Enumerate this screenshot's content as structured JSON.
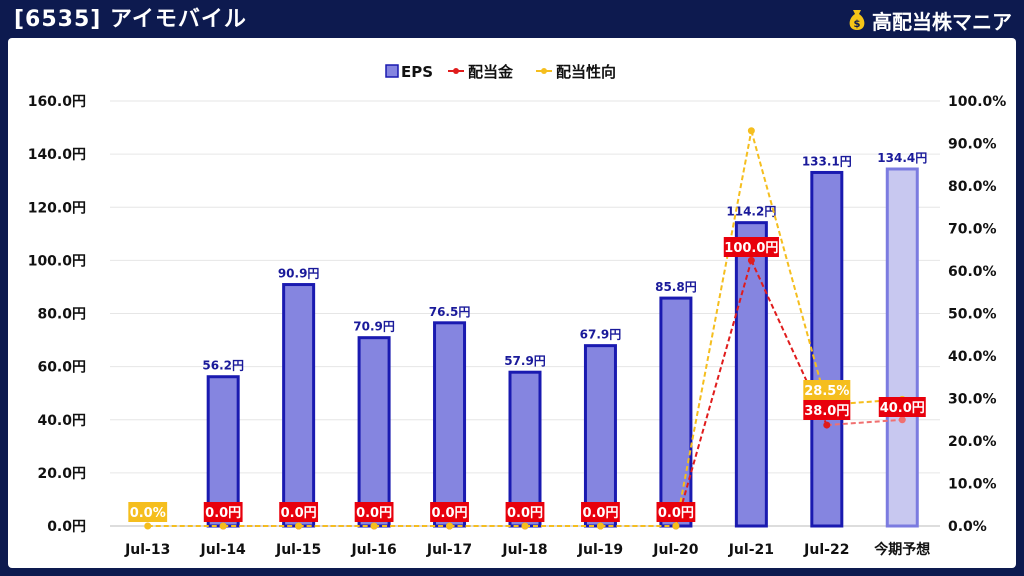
{
  "header": {
    "title": "[6535] アイモバイル",
    "brand": "高配当株マニア",
    "brand_icon": "money-bag-icon",
    "background": "#0d1a4f"
  },
  "chart_data": {
    "type": "bar",
    "categories": [
      "Jul-13",
      "Jul-14",
      "Jul-15",
      "Jul-16",
      "Jul-17",
      "Jul-18",
      "Jul-19",
      "Jul-20",
      "Jul-21",
      "Jul-22",
      "今期予想"
    ],
    "legend_position": "top-center",
    "grid": true,
    "series": [
      {
        "name": "EPS",
        "type": "bar",
        "axis": "left",
        "values": [
          null,
          56.2,
          90.9,
          70.9,
          76.5,
          57.9,
          67.9,
          85.8,
          114.2,
          133.1,
          134.4
        ],
        "labels": [
          "",
          "56.2円",
          "90.9円",
          "70.9円",
          "76.5円",
          "57.9円",
          "67.9円",
          "85.8円",
          "114.2円",
          "133.1円",
          "134.4円"
        ],
        "color": "#8585e0",
        "border": "#1a1ab0",
        "forecast_color": "#c8c8f0",
        "forecast_border": "#7b7be0"
      },
      {
        "name": "配当金",
        "type": "line",
        "axis": "left",
        "values": [
          null,
          0.0,
          0.0,
          0.0,
          0.0,
          0.0,
          0.0,
          0.0,
          100.0,
          38.0,
          40.0
        ],
        "labels": [
          "",
          "0.0円",
          "0.0円",
          "0.0円",
          "0.0円",
          "0.0円",
          "0.0円",
          "0.0円",
          "100.0円",
          "38.0円",
          "40.0円"
        ],
        "color": "#e01c1c",
        "forecast_color": "#f07070"
      },
      {
        "name": "配当性向",
        "type": "line",
        "axis": "right",
        "values": [
          0.0,
          0.0,
          0.0,
          0.0,
          0.0,
          0.0,
          0.0,
          0.0,
          93.0,
          28.5,
          29.8
        ],
        "labels": [
          "0.0%",
          "",
          "",
          "",
          "",
          "",
          "",
          "",
          "",
          "28.5%",
          ""
        ],
        "color": "#f5be1e"
      }
    ],
    "left_axis": {
      "min": 0,
      "max": 160,
      "ticks": [
        "0.0円",
        "20.0円",
        "40.0円",
        "60.0円",
        "80.0円",
        "100.0円",
        "120.0円",
        "140.0円",
        "160.0円"
      ]
    },
    "right_axis": {
      "min": 0,
      "max": 100,
      "ticks": [
        "0.0%",
        "10.0%",
        "20.0%",
        "30.0%",
        "40.0%",
        "50.0%",
        "60.0%",
        "70.0%",
        "80.0%",
        "90.0%",
        "100.0%"
      ]
    }
  }
}
